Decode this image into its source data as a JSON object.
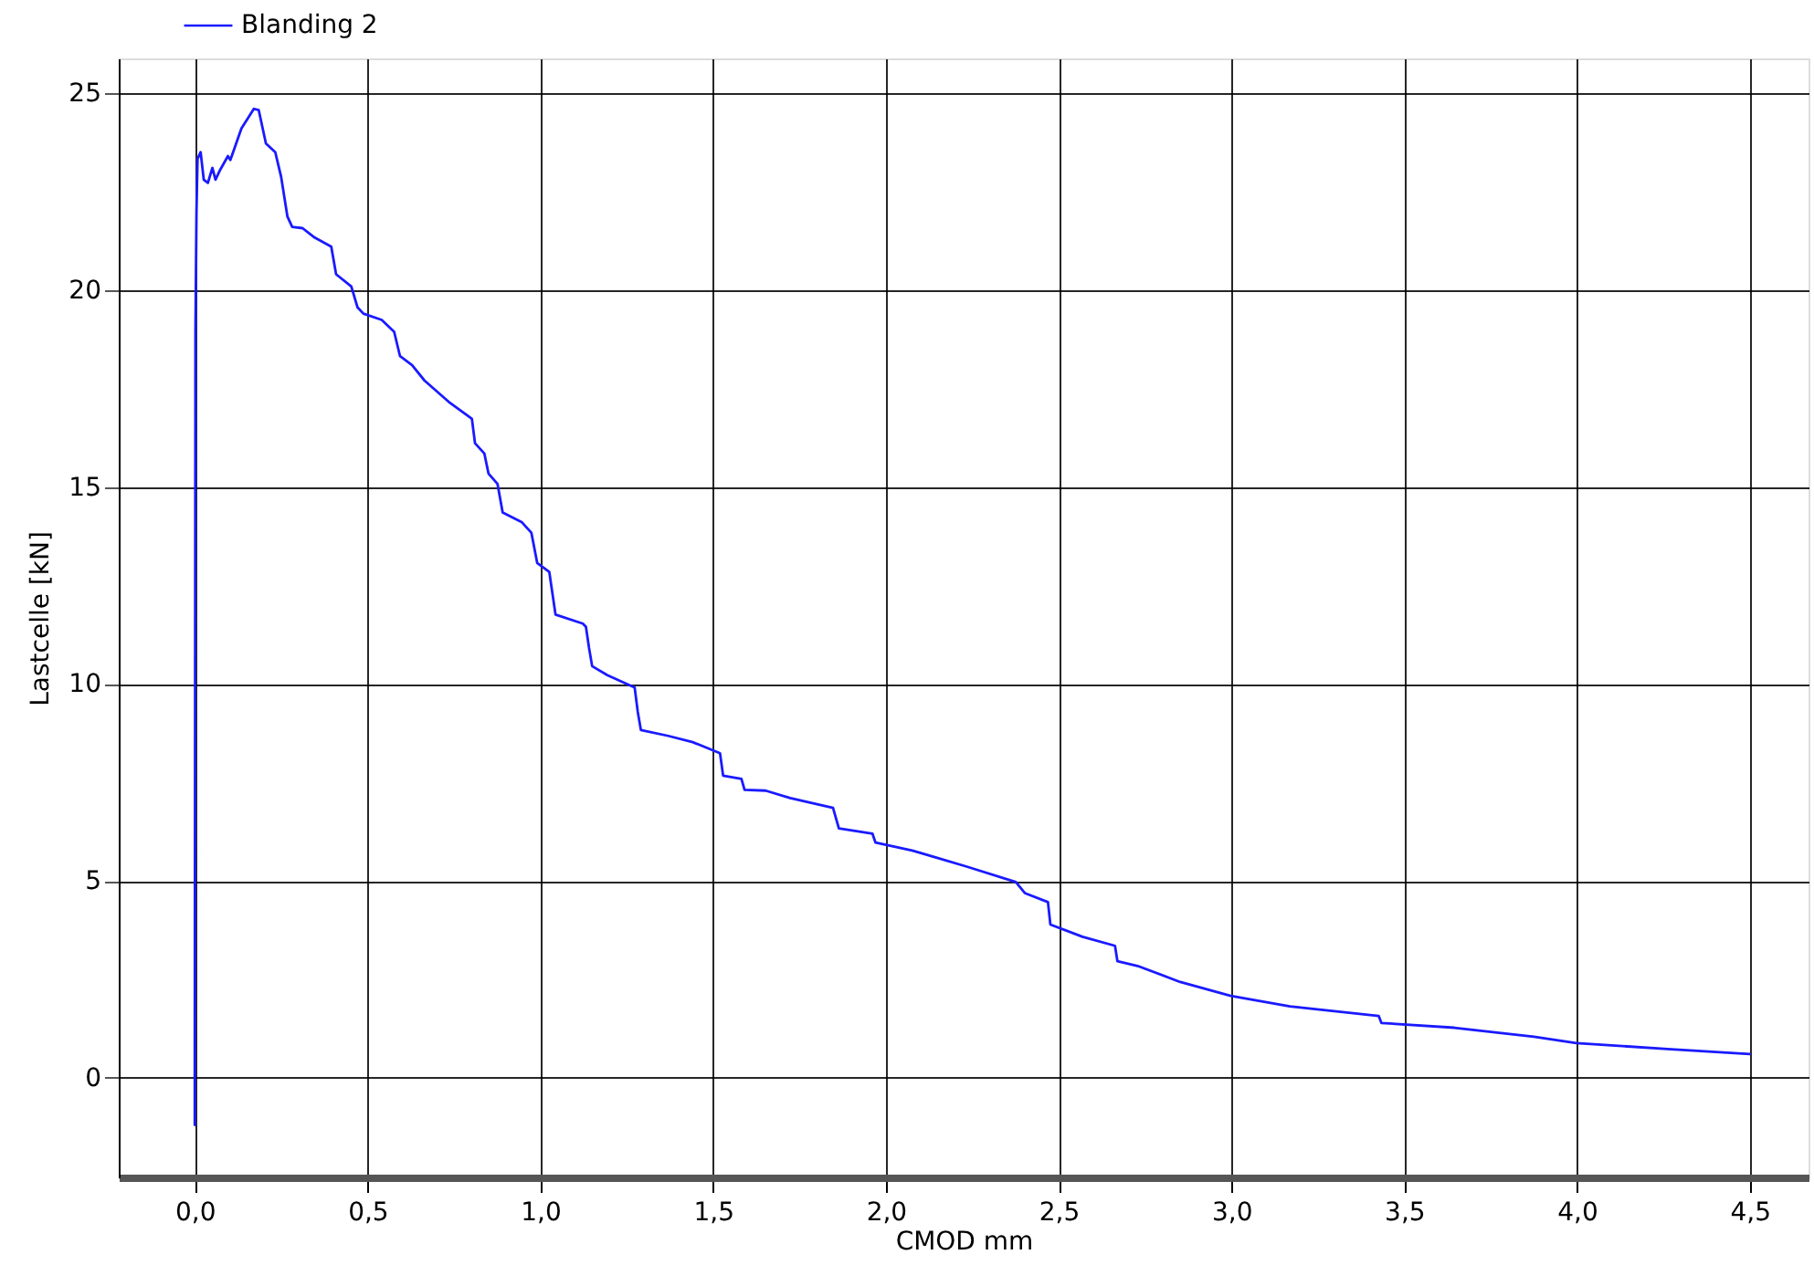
{
  "chart_data": {
    "type": "line",
    "xlabel": "CMOD mm",
    "ylabel": "Lastcelle [kN]",
    "xlim": [
      -0.22,
      4.67
    ],
    "ylim": [
      -2.53,
      25.88
    ],
    "xticks": [
      {
        "value": 0,
        "label": "0,0"
      },
      {
        "value": 0.5,
        "label": "0,5"
      },
      {
        "value": 1,
        "label": "1,0"
      },
      {
        "value": 1.5,
        "label": "1,5"
      },
      {
        "value": 2,
        "label": "2,0"
      },
      {
        "value": 2.5,
        "label": "2,5"
      },
      {
        "value": 3,
        "label": "3,0"
      },
      {
        "value": 3.5,
        "label": "3,5"
      },
      {
        "value": 4,
        "label": "4,0"
      },
      {
        "value": 4.5,
        "label": "4,5"
      }
    ],
    "yticks": [
      0,
      5,
      10,
      15,
      20,
      25
    ],
    "grid": true,
    "legend": "top left",
    "line_style": "solid",
    "marker": "none",
    "series": [
      {
        "name": "Blanding 2",
        "color": "#1a1aff",
        "x": [
          0,
          0,
          0.002,
          0.005,
          0.008,
          0.017,
          0.026,
          0.038,
          0.051,
          0.06,
          0.074,
          0.096,
          0.103,
          0.135,
          0.171,
          0.185,
          0.206,
          0.233,
          0.25,
          0.268,
          0.282,
          0.312,
          0.347,
          0.395,
          0.409,
          0.453,
          0.471,
          0.488,
          0.541,
          0.577,
          0.594,
          0.629,
          0.665,
          0.735,
          0.802,
          0.811,
          0.838,
          0.85,
          0.876,
          0.891,
          0.947,
          0.974,
          0.991,
          1.026,
          1.044,
          1.123,
          1.132,
          1.141,
          1.15,
          1.194,
          1.273,
          1.282,
          1.291,
          1.37,
          1.441,
          1.52,
          1.529,
          1.582,
          1.591,
          1.652,
          1.723,
          1.847,
          1.864,
          1.961,
          1.97,
          2.076,
          2.146,
          2.234,
          2.376,
          2.402,
          2.469,
          2.476,
          2.569,
          2.663,
          2.67,
          2.728,
          2.852,
          2.998,
          3.169,
          3.426,
          3.434,
          3.645,
          3.875,
          3.998,
          4.262,
          4.5
        ],
        "values": [
          -1.2,
          0.6,
          19,
          22,
          23.33,
          23.5,
          22.8,
          22.72,
          23.1,
          22.8,
          23.06,
          23.4,
          23.3,
          24.1,
          24.6,
          24.57,
          23.72,
          23.5,
          22.87,
          21.87,
          21.6,
          21.57,
          21.33,
          21.1,
          20.4,
          20.09,
          19.56,
          19.4,
          19.24,
          18.94,
          18.32,
          18.09,
          17.7,
          17.16,
          16.73,
          16.11,
          15.85,
          15.34,
          15.08,
          14.35,
          14.1,
          13.84,
          13.07,
          12.84,
          11.76,
          11.53,
          11.45,
          10.91,
          10.45,
          10.22,
          9.91,
          9.29,
          8.83,
          8.68,
          8.52,
          8.24,
          7.67,
          7.59,
          7.31,
          7.29,
          7.1,
          6.85,
          6.33,
          6.2,
          5.97,
          5.77,
          5.59,
          5.36,
          4.97,
          4.69,
          4.46,
          3.89,
          3.58,
          3.35,
          2.96,
          2.84,
          2.43,
          2.08,
          1.81,
          1.57,
          1.39,
          1.27,
          1.04,
          0.88,
          0.73,
          0.6
        ]
      }
    ]
  }
}
